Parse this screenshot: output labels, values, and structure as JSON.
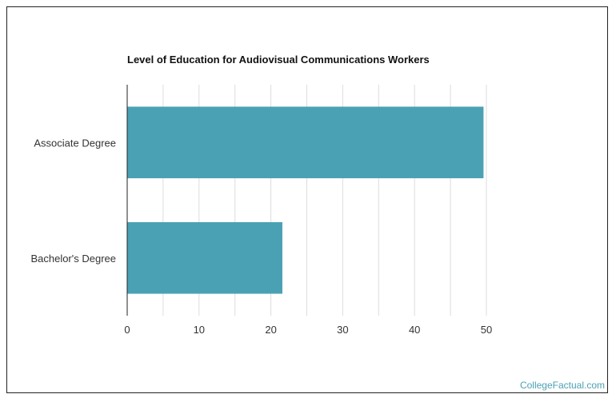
{
  "chart_data": {
    "type": "bar",
    "orientation": "horizontal",
    "title": "Level of Education for Audiovisual Communications Workers",
    "xlabel": "",
    "ylabel": "",
    "categories": [
      "Associate Degree",
      "Bachelor's Degree"
    ],
    "values": [
      49.6,
      21.6
    ],
    "xlim": [
      0,
      50
    ],
    "x_ticks": [
      "0",
      "10",
      "20",
      "30",
      "40",
      "50"
    ],
    "grid": true,
    "legend": "none",
    "bar_color": "#4BA1B4"
  },
  "footer": {
    "brand": "CollegeFactual.com",
    "brand_color": "#4BA1B4"
  }
}
